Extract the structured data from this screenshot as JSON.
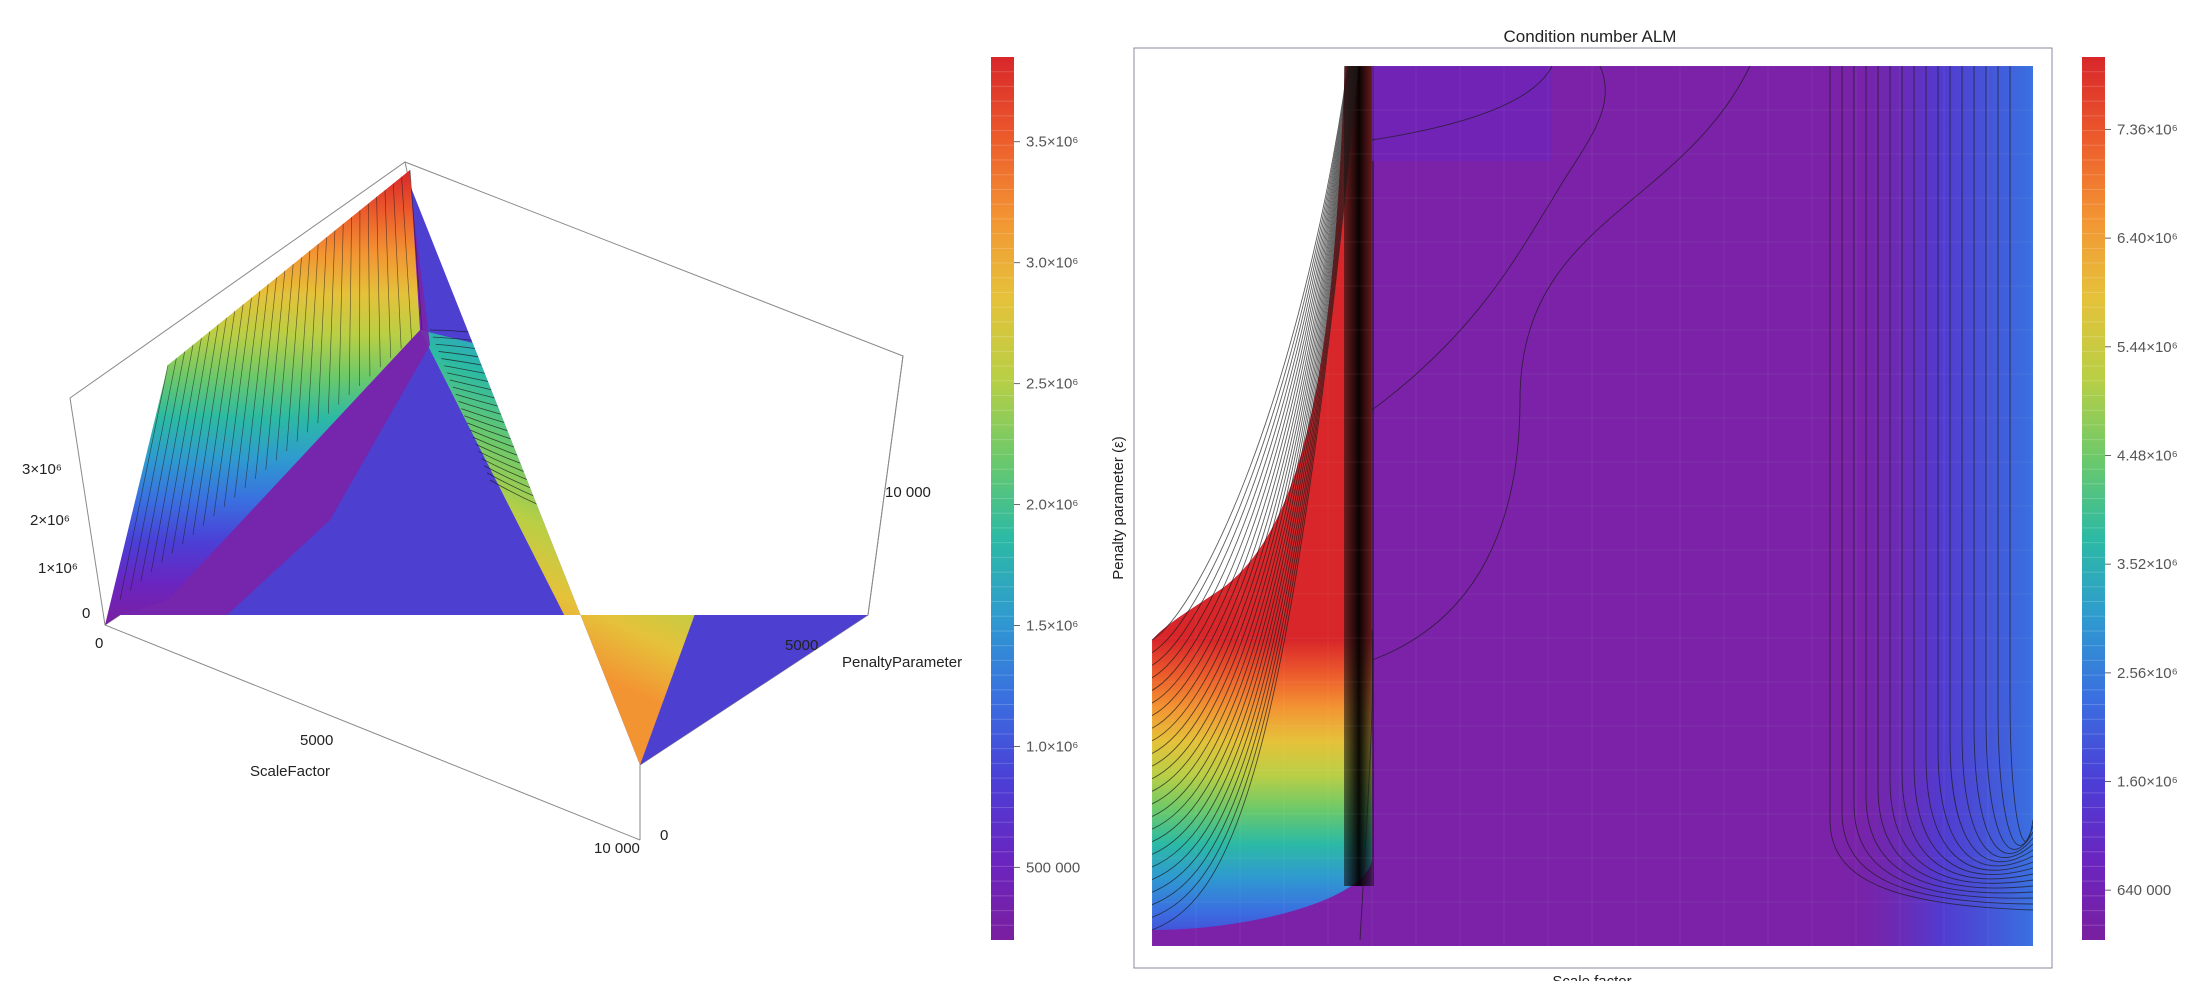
{
  "colors": {
    "palette": [
      "#7a1fa0",
      "#6a25c0",
      "#4b3fd6",
      "#3a6fe0",
      "#2f9ad0",
      "#2cbaa4",
      "#6cc96a",
      "#b9cf45",
      "#e5c23a",
      "#f39433",
      "#ec5a2c",
      "#d8262a"
    ],
    "mesh": "#222222",
    "frame": "#888888"
  },
  "chart_data": [
    {
      "type": "surface3d",
      "title": "",
      "xlabel": "ScaleFactor",
      "ylabel": "PenaltyParameter",
      "zlabel": "",
      "x_ticks": [
        "0",
        "5000",
        "10 000"
      ],
      "y_ticks": [
        "0",
        "5000",
        "10 000"
      ],
      "z_ticks": [
        "0",
        "1×10⁶",
        "2×10⁶",
        "3×10⁶"
      ],
      "xlim": [
        0,
        10000
      ],
      "ylim": [
        0,
        10000
      ],
      "zlim": [
        0,
        3500000
      ],
      "colorbar": {
        "ticks": [
          {
            "value": 500000,
            "label": "500 000"
          },
          {
            "value": 1000000,
            "label": "1.0×10⁶"
          },
          {
            "value": 1500000,
            "label": "1.5×10⁶"
          },
          {
            "value": 2000000,
            "label": "2.0×10⁶"
          },
          {
            "value": 2500000,
            "label": "2.5×10⁶"
          },
          {
            "value": 3000000,
            "label": "3.0×10⁶"
          },
          {
            "value": 3500000,
            "label": "3.5×10⁶"
          }
        ],
        "min": 200000,
        "max": 3850000
      }
    },
    {
      "type": "heatmap",
      "title": "Condition number ALM",
      "xlabel": "Scale factor",
      "ylabel": "Penalty parameter (ε)",
      "colorbar": {
        "ticks": [
          {
            "value": 640000,
            "label": "640 000"
          },
          {
            "value": 1600000,
            "label": "1.60×10⁶"
          },
          {
            "value": 2560000,
            "label": "2.56×10⁶"
          },
          {
            "value": 3520000,
            "label": "3.52×10⁶"
          },
          {
            "value": 4480000,
            "label": "4.48×10⁶"
          },
          {
            "value": 5440000,
            "label": "5.44×10⁶"
          },
          {
            "value": 6400000,
            "label": "6.40×10⁶"
          },
          {
            "value": 7360000,
            "label": "7.36×10⁶"
          }
        ],
        "min": 200000,
        "max": 8000000
      }
    }
  ]
}
